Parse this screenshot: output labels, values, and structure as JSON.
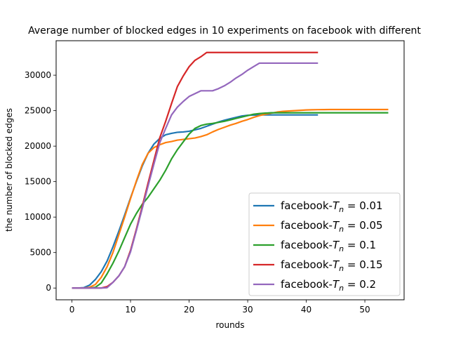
{
  "chart_data": {
    "type": "line",
    "title": "Average number of blocked edges in 10 experiments on facebook with different",
    "xlabel": "rounds",
    "ylabel": "the number of blocked edges",
    "xlim": [
      -2.7,
      56.7
    ],
    "ylim": [
      -1660,
      34860
    ],
    "xticks": [
      0,
      10,
      20,
      30,
      40,
      50
    ],
    "yticks": [
      0,
      5000,
      10000,
      15000,
      20000,
      25000,
      30000
    ],
    "grid": false,
    "legend_position": "lower-right",
    "legend_prefix": "facebook-",
    "legend_var": "T",
    "legend_sub": "n",
    "legend_eq": "=",
    "series": [
      {
        "name": "facebook-Tn = 0.01",
        "value_label": "0.01",
        "color": "#1f77b4",
        "x": [
          0,
          1,
          2,
          3,
          4,
          5,
          6,
          7,
          8,
          9,
          10,
          11,
          12,
          13,
          14,
          15,
          16,
          17,
          18,
          19,
          20,
          21,
          22,
          23,
          24,
          25,
          26,
          27,
          28,
          29,
          30,
          31,
          32,
          33,
          34,
          35,
          36,
          37,
          38,
          39,
          40,
          41,
          42
        ],
        "y": [
          0,
          0,
          50,
          400,
          1200,
          2300,
          3800,
          5800,
          8000,
          10300,
          12700,
          15000,
          17200,
          19000,
          20300,
          21100,
          21600,
          21800,
          21950,
          22000,
          22100,
          22300,
          22500,
          22800,
          23100,
          23400,
          23650,
          23850,
          24050,
          24250,
          24350,
          24380,
          24400,
          24400,
          24400,
          24400,
          24400,
          24400,
          24400,
          24400,
          24400,
          24400,
          24400
        ]
      },
      {
        "name": "facebook-Tn = 0.05",
        "value_label": "0.05",
        "color": "#ff7f0e",
        "x": [
          0,
          1,
          2,
          3,
          4,
          5,
          6,
          7,
          8,
          9,
          10,
          11,
          12,
          13,
          14,
          15,
          16,
          17,
          18,
          19,
          20,
          21,
          22,
          23,
          24,
          25,
          26,
          27,
          28,
          29,
          30,
          31,
          32,
          33,
          34,
          35,
          36,
          37,
          38,
          39,
          40,
          41,
          42,
          43,
          44,
          45,
          46,
          47,
          48,
          49,
          50,
          51,
          52,
          53,
          54
        ],
        "y": [
          0,
          0,
          0,
          100,
          500,
          1500,
          3000,
          5000,
          7500,
          10000,
          12600,
          15100,
          17400,
          19000,
          19800,
          20200,
          20500,
          20650,
          20850,
          20950,
          21050,
          21150,
          21350,
          21600,
          22000,
          22350,
          22650,
          22950,
          23200,
          23500,
          23750,
          24050,
          24300,
          24500,
          24650,
          24800,
          24900,
          24950,
          25000,
          25050,
          25100,
          25120,
          25140,
          25150,
          25160,
          25160,
          25160,
          25160,
          25160,
          25160,
          25160,
          25160,
          25160,
          25160,
          25160
        ]
      },
      {
        "name": "facebook-Tn = 0.1",
        "value_label": "0.1",
        "color": "#2ca02c",
        "x": [
          0,
          1,
          2,
          3,
          4,
          5,
          6,
          7,
          8,
          9,
          10,
          11,
          12,
          13,
          14,
          15,
          16,
          17,
          18,
          19,
          20,
          21,
          22,
          23,
          24,
          25,
          26,
          27,
          28,
          29,
          30,
          31,
          32,
          33,
          34,
          35,
          36,
          37,
          38,
          39,
          40,
          41,
          42,
          43,
          44,
          45,
          46,
          47,
          48,
          49,
          50,
          51,
          52,
          53,
          54
        ],
        "y": [
          0,
          0,
          0,
          0,
          100,
          700,
          2000,
          3500,
          5200,
          7100,
          9000,
          10500,
          11800,
          12800,
          14000,
          15200,
          16600,
          18200,
          19500,
          20600,
          21700,
          22500,
          22900,
          23100,
          23200,
          23350,
          23500,
          23700,
          23900,
          24100,
          24300,
          24500,
          24600,
          24650,
          24700,
          24700,
          24700,
          24700,
          24700,
          24700,
          24700,
          24700,
          24700,
          24700,
          24700,
          24700,
          24700,
          24700,
          24700,
          24700,
          24700,
          24700,
          24700,
          24700,
          24700
        ]
      },
      {
        "name": "facebook-Tn = 0.15",
        "value_label": "0.15",
        "color": "#d62728",
        "x": [
          0,
          1,
          2,
          3,
          4,
          5,
          6,
          7,
          8,
          9,
          10,
          11,
          12,
          13,
          14,
          15,
          16,
          17,
          18,
          19,
          20,
          21,
          22,
          23,
          24,
          25,
          26,
          27,
          28,
          29,
          30,
          31,
          32,
          33,
          34,
          35,
          36,
          37,
          38,
          39,
          40,
          41,
          42
        ],
        "y": [
          0,
          0,
          0,
          0,
          0,
          0,
          200,
          800,
          1700,
          3000,
          5300,
          8300,
          11500,
          14800,
          18000,
          21200,
          23500,
          26000,
          28400,
          29900,
          31200,
          32100,
          32600,
          33200,
          33200,
          33200,
          33200,
          33200,
          33200,
          33200,
          33200,
          33200,
          33200,
          33200,
          33200,
          33200,
          33200,
          33200,
          33200,
          33200,
          33200,
          33200,
          33200
        ]
      },
      {
        "name": "facebook-Tn = 0.2",
        "value_label": "0.2",
        "color": "#9467bd",
        "x": [
          0,
          1,
          2,
          3,
          4,
          5,
          6,
          7,
          8,
          9,
          10,
          11,
          12,
          13,
          14,
          15,
          16,
          17,
          18,
          19,
          20,
          21,
          22,
          23,
          24,
          25,
          26,
          27,
          28,
          29,
          30,
          31,
          32,
          33,
          34,
          35,
          36,
          37,
          38,
          39,
          40,
          41,
          42
        ],
        "y": [
          0,
          0,
          0,
          0,
          0,
          0,
          50,
          800,
          1700,
          3000,
          5100,
          8100,
          11200,
          14400,
          17500,
          20500,
          22500,
          24400,
          25500,
          26300,
          27000,
          27400,
          27800,
          27800,
          27800,
          28100,
          28500,
          29000,
          29600,
          30100,
          30700,
          31200,
          31700,
          31700,
          31700,
          31700,
          31700,
          31700,
          31700,
          31700,
          31700,
          31700,
          31700
        ]
      }
    ]
  }
}
